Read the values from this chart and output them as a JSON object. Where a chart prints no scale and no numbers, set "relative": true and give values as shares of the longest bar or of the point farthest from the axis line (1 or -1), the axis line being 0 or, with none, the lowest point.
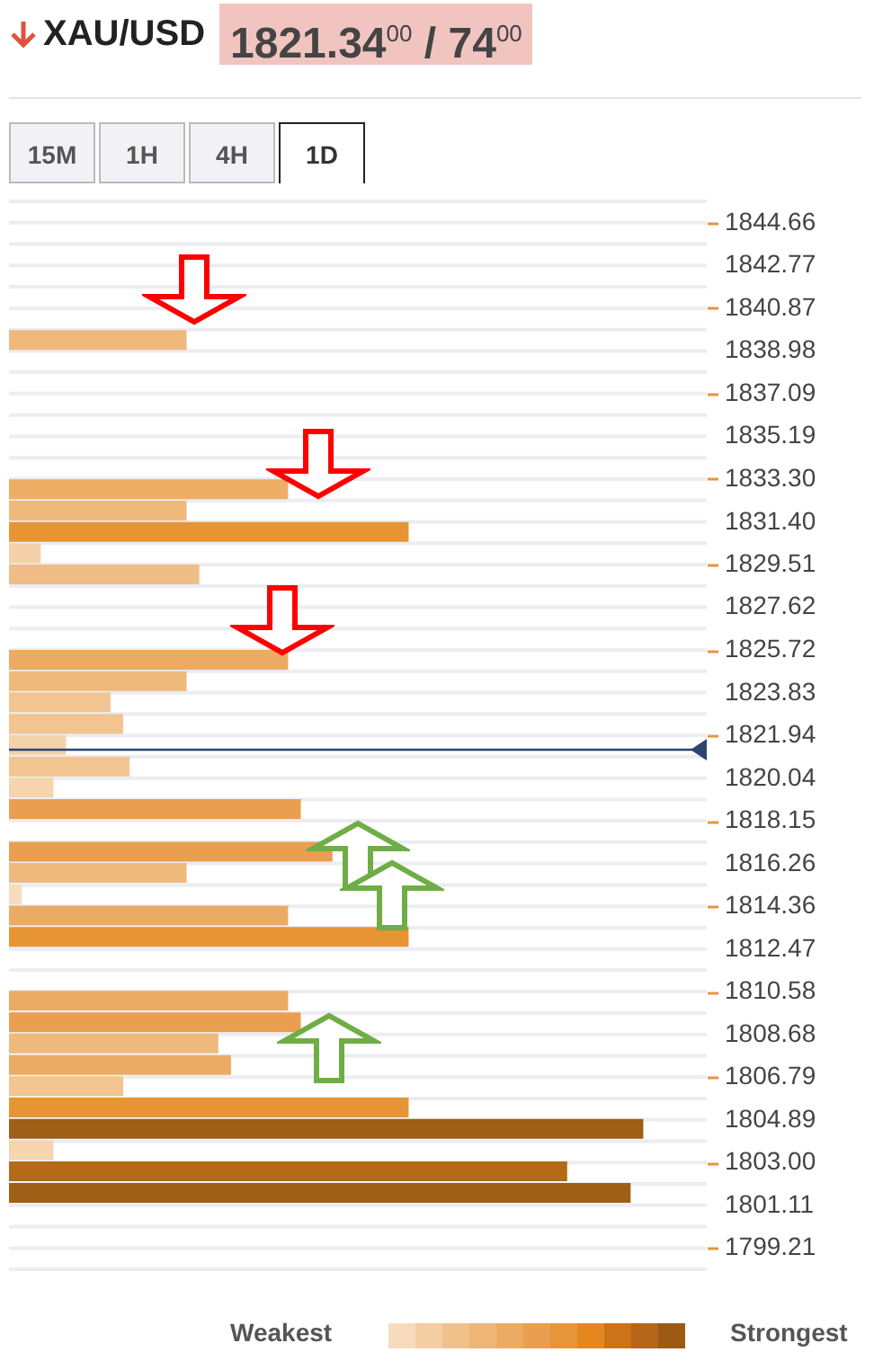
{
  "chart_data": {
    "type": "bar",
    "orientation": "horizontal",
    "relative": true,
    "title": "XAU/USD",
    "subtitle": "1821.34$^{00}$ / 74$^{00}$",
    "annotations": [
      "15M",
      "1H",
      "4H",
      "1D",
      "Weakest",
      "Strongest"
    ],
    "x": [
      1839.46,
      1832.85,
      1831.9,
      1830.96,
      1830.01,
      1829.07,
      1825.29,
      1824.34,
      1823.4,
      1822.45,
      1821.51,
      1820.56,
      1819.62,
      1818.67,
      1816.78,
      1815.84,
      1814.89,
      1813.95,
      1813.0,
      1810.17,
      1809.22,
      1808.28,
      1807.33,
      1806.39,
      1805.44,
      1804.5,
      1803.55,
      1802.61,
      1801.66
    ],
    "values": [
      0.28,
      0.44,
      0.28,
      0.63,
      0.05,
      0.3,
      0.44,
      0.28,
      0.16,
      0.18,
      0.09,
      0.19,
      0.07,
      0.46,
      0.51,
      0.28,
      0.02,
      0.44,
      0.63,
      0.44,
      0.46,
      0.33,
      0.35,
      0.18,
      0.63,
      1,
      0.07,
      0.88,
      0.98
    ],
    "colors": [
      "#efb97c",
      "#eeae66",
      "#efb97c",
      "#e79534",
      "#f4d1aa",
      "#efbd85",
      "#ecab64",
      "#efb97c",
      "#f1c490",
      "#f1c490",
      "#f4d2ab",
      "#f1c490",
      "#f5d4ae",
      "#e99f4f",
      "#e99f4f",
      "#efb97c",
      "#f7dcbf",
      "#ecab64",
      "#e79534",
      "#ecab64",
      "#e99f4f",
      "#efb97c",
      "#ecab64",
      "#f1c490",
      "#e79534",
      "#a05f16",
      "#f5d4ae",
      "#b46a17",
      "#a05f16"
    ],
    "ylim": [
      1798.27,
      1845.61
    ],
    "yticks": [
      1844.66,
      {
        "value": 1843.715,
        "label": null
      },
      1842.77,
      {
        "value": 1841.82,
        "label": null
      },
      1840.87,
      {
        "value": 1839.925,
        "label": null
      },
      1838.98,
      {
        "value": 1838.035,
        "label": null
      },
      1837.09,
      {
        "value": 1836.14,
        "label": null
      },
      1835.19,
      {
        "value": 1834.245,
        "label": null
      },
      {
        "value": 1833.3,
        "label": "1833.30"
      },
      {
        "value": 1832.35,
        "label": null
      },
      {
        "value": 1831.4,
        "label": "1831.40"
      },
      {
        "value": 1830.455,
        "label": null
      },
      1829.51,
      {
        "value": 1828.565,
        "label": null
      },
      1827.62,
      {
        "value": 1826.67,
        "label": null
      },
      1825.72,
      {
        "value": 1824.775,
        "label": null
      },
      1823.83,
      {
        "value": 1822.885,
        "label": null
      },
      1821.94,
      {
        "value": 1820.99,
        "label": null
      },
      1820.04,
      {
        "value": 1819.095,
        "label": null
      },
      1818.15,
      {
        "value": 1817.205,
        "label": null
      },
      1816.26,
      {
        "value": 1815.31,
        "label": null
      },
      1814.36,
      {
        "value": 1813.415,
        "label": null
      },
      1812.47,
      {
        "value": 1811.525,
        "label": null
      },
      1810.58,
      {
        "value": 1809.63,
        "label": null
      },
      1808.68,
      {
        "value": 1807.735,
        "label": null
      },
      1806.79,
      {
        "value": 1805.84,
        "label": null
      },
      1804.89,
      {
        "value": 1803.945,
        "label": null
      },
      {
        "value": 1803.0,
        "label": "1803.00"
      },
      {
        "value": 1802.055,
        "label": null
      },
      1801.11,
      {
        "value": 1800.16,
        "label": null
      },
      1799.21
    ],
    "grid": "y",
    "ref_lines": [
      {
        "axis": "y",
        "value": 1821.3,
        "color": "#2b4570"
      }
    ]
  }
}
